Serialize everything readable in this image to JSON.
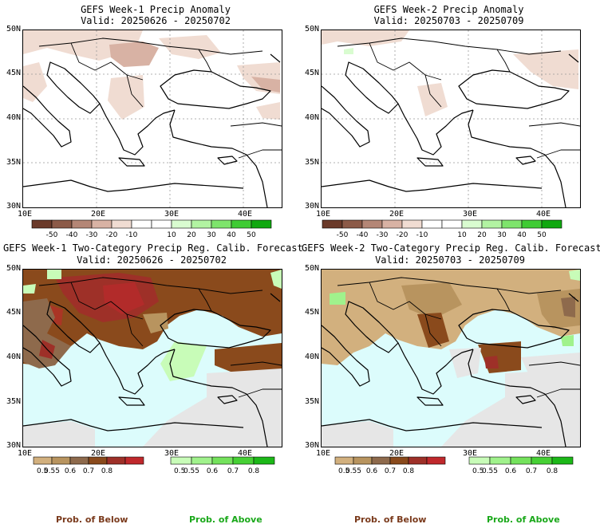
{
  "panels": [
    {
      "title": "GEFS Week-1 Precip Anomaly",
      "valid": "Valid: 20250626 - 20250702",
      "lat_labels": [
        "50N",
        "45N",
        "40N",
        "35N",
        "30N"
      ],
      "lon_labels": [
        "10E",
        "20E",
        "30E",
        "40E"
      ]
    },
    {
      "title": "GEFS Week-2 Precip Anomaly",
      "valid": "Valid: 20250703 - 20250709",
      "lat_labels": [
        "50N",
        "45N",
        "40N",
        "35N",
        "30N"
      ],
      "lon_labels": [
        "10E",
        "20E",
        "30E",
        "40E"
      ]
    },
    {
      "title": "GEFS Week-1 Two-Category Precip Reg. Calib. Forecast",
      "valid": "Valid: 20250626 - 20250702",
      "lat_labels": [
        "50N",
        "45N",
        "40N",
        "35N",
        "30N"
      ],
      "lon_labels": [
        "10E",
        "20E",
        "30E",
        "40E"
      ]
    },
    {
      "title": "GEFS Week-2 Two-Category Precip Reg. Calib. Forecast",
      "valid": "Valid: 20250703 - 20250709",
      "lat_labels": [
        "50N",
        "45N",
        "40N",
        "35N",
        "30N"
      ],
      "lon_labels": [
        "10E",
        "20E",
        "30E",
        "40E"
      ]
    }
  ],
  "anomaly_colorbar": {
    "colors": [
      "#6b3a2a",
      "#8c5a48",
      "#b48676",
      "#d8b2a4",
      "#f0dcd2",
      "#ffffff",
      "#ffffff",
      "#d9fcd0",
      "#b2f3a2",
      "#7ee46c",
      "#3fcc34",
      "#10a810"
    ],
    "labels": [
      "-50",
      "-40",
      "-30",
      "-20",
      "-10",
      "10",
      "20",
      "30",
      "40",
      "50"
    ]
  },
  "below_colorbar": {
    "colors": [
      "#d2b07e",
      "#b8945f",
      "#8e6a4c",
      "#8a4a1c",
      "#9e3028",
      "#c0282c"
    ],
    "labels": [
      "0.5",
      "0.55",
      "0.6",
      "0.7",
      "0.8"
    ]
  },
  "above_colorbar": {
    "colors": [
      "#c8fcb8",
      "#a0f28c",
      "#74e25c",
      "#46d034",
      "#1cb818"
    ],
    "labels": [
      "0.5",
      "0.55",
      "0.6",
      "0.7",
      "0.8"
    ]
  },
  "legend": {
    "below_label": "Prob. of Below",
    "above_label": "Prob. of Above",
    "below_color": "#7a3a1c",
    "above_color": "#1aa81a"
  },
  "map_colors": {
    "sea_fill": "#dcfcfc",
    "nodata_fill": "#e6e6e6",
    "grid_color": "#999999"
  }
}
